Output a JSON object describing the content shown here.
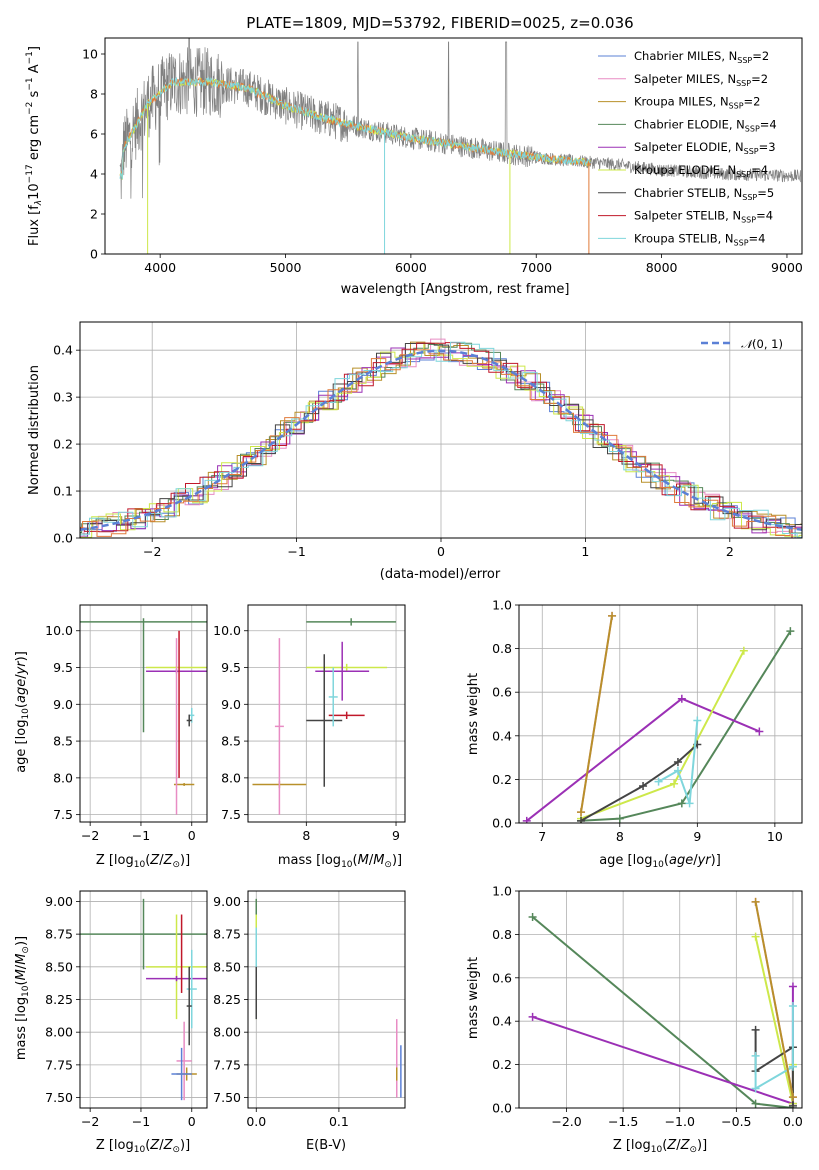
{
  "title": "PLATE=1809, MJD=53792, FIBERID=0025, z=0.036",
  "colors": {
    "Chabrier MILES": "#5b80d6",
    "Salpeter MILES": "#e88cc4",
    "Kroupa MILES": "#b8902a",
    "Chabrier ELODIE": "#55875a",
    "Salpeter ELODIE": "#9b30b5",
    "Kroupa ELODIE": "#cde84a",
    "Chabrier STELIB": "#444444",
    "Salpeter STELIB": "#c0182a",
    "Kroupa STELIB": "#7fd6dc",
    "data": "#808080",
    "orange": "#e07a3a",
    "gauss": "#5b80d6"
  },
  "chart_data": [
    {
      "type": "line",
      "id": "spectrum",
      "xlabel": "wavelength [Angstrom, rest frame]",
      "ylabel_html": "Flux [f_λ 10^-17 erg cm^-2 s^-1 A^-1]",
      "ylabel": {
        "pre": "Flux [f",
        "sub": "λ",
        "mid": "10",
        "sup1": "−17",
        "mid2": " erg cm",
        "sup2": "−2",
        "mid3": " s",
        "sup3": "−1",
        "mid4": " A",
        "sup4": "−1",
        "post": "]"
      },
      "xlim": [
        3560,
        9120
      ],
      "ylim": [
        0,
        10.8
      ],
      "xticks": [
        4000,
        5000,
        6000,
        7000,
        8000,
        9000
      ],
      "yticks": [
        0,
        2,
        4,
        6,
        8,
        10
      ],
      "data_range": [
        3680,
        9110
      ],
      "model_range": [
        3680,
        7430
      ],
      "legend": [
        {
          "name": "Chabrier MILES",
          "nssp": "2"
        },
        {
          "name": "Salpeter MILES",
          "nssp": "2"
        },
        {
          "name": "Kroupa MILES",
          "nssp": "2"
        },
        {
          "name": "Chabrier ELODIE",
          "nssp": "4"
        },
        {
          "name": "Salpeter ELODIE",
          "nssp": "3"
        },
        {
          "name": "Kroupa ELODIE",
          "nssp": "4"
        },
        {
          "name": "Chabrier STELIB",
          "nssp": "5"
        },
        {
          "name": "Salpeter STELIB",
          "nssp": "4"
        },
        {
          "name": "Kroupa STELIB",
          "nssp": "4"
        }
      ],
      "continuum": [
        [
          3700,
          5.2
        ],
        [
          3900,
          7.5
        ],
        [
          4100,
          8.6
        ],
        [
          4400,
          8.6
        ],
        [
          4700,
          8.3
        ],
        [
          5000,
          7.4
        ],
        [
          5300,
          6.8
        ],
        [
          5700,
          6.2
        ],
        [
          6000,
          5.8
        ],
        [
          6400,
          5.4
        ],
        [
          6800,
          5.0
        ],
        [
          7200,
          4.7
        ],
        [
          7600,
          4.5
        ],
        [
          8000,
          4.2
        ],
        [
          8500,
          4.0
        ],
        [
          9100,
          3.9
        ]
      ]
    },
    {
      "type": "line",
      "id": "residuals",
      "xlabel": "(data-model)/error",
      "ylabel": "Normed distribution",
      "xlim": [
        -2.5,
        2.5
      ],
      "ylim": [
        0,
        0.46
      ],
      "xticks": [
        -2,
        -1,
        0,
        1,
        2
      ],
      "yticks": [
        0.0,
        0.1,
        0.2,
        0.3,
        0.4
      ],
      "ytick_labels": [
        "0.0",
        "0.1",
        "0.2",
        "0.3",
        "0.4"
      ],
      "legend": "N(0,1)",
      "gauss_sigma": 1.0
    },
    {
      "type": "scatter",
      "id": "age_vs_Z",
      "xlabel": "Z [log10(Z/Zsun)]",
      "ylabel": "age [log10(age/yr)]",
      "xlim": [
        -2.2,
        0.3
      ],
      "ylim": [
        7.4,
        10.35
      ],
      "xticks": [
        -2,
        -1,
        0
      ],
      "yticks": [
        7.5,
        8.0,
        8.5,
        9.0,
        9.5,
        10.0
      ],
      "points": [
        {
          "c": "Chabrier ELODIE",
          "x": -0.95,
          "y": 10.12,
          "xe": 1.25,
          "ye": 0.05,
          "yl": 1.5
        },
        {
          "c": "Kroupa ELODIE",
          "x": -0.3,
          "y": 9.5,
          "xe": 0.6,
          "ye": 0.02,
          "yl": 0.0
        },
        {
          "c": "Salpeter ELODIE",
          "x": -0.3,
          "y": 9.45,
          "xe": 0.6,
          "ye": 0.03
        },
        {
          "c": "Salpeter STELIB",
          "x": -0.25,
          "y": 9.0,
          "xe": 0.0,
          "ye": 1.0
        },
        {
          "c": "Kroupa STELIB",
          "x": 0.0,
          "y": 8.85,
          "xe": 0.05,
          "ye": 0.1
        },
        {
          "c": "Chabrier STELIB",
          "x": -0.05,
          "y": 8.78,
          "xe": 0.05,
          "ye": 0.08
        },
        {
          "c": "Kroupa MILES",
          "x": -0.15,
          "y": 7.91,
          "xe": 0.2,
          "ye": 0.02
        },
        {
          "c": "Salpeter MILES",
          "x": -0.3,
          "y": 8.7,
          "xe": 0.0,
          "ye": 1.2
        }
      ]
    },
    {
      "type": "scatter",
      "id": "age_vs_mass",
      "xlabel": "mass [log10(M/Msun)]",
      "ylabel": "",
      "xlim": [
        7.35,
        9.1
      ],
      "ylim": [
        7.4,
        10.35
      ],
      "xticks": [
        8,
        9
      ],
      "yticks": [
        7.5,
        8.0,
        8.5,
        9.0,
        9.5,
        10.0
      ],
      "points": [
        {
          "c": "Chabrier ELODIE",
          "x": 8.5,
          "y": 10.12,
          "xe": 0.5,
          "ye": 0.05
        },
        {
          "c": "Kroupa ELODIE",
          "x": 8.45,
          "y": 9.5,
          "xe": 0.45,
          "ye": 0.05
        },
        {
          "c": "Salpeter ELODIE",
          "x": 8.4,
          "y": 9.45,
          "xe": 0.3,
          "ye": 0.4
        },
        {
          "c": "Chabrier STELIB",
          "x": 8.2,
          "y": 8.78,
          "xe": 0.2,
          "ye": 0.9
        },
        {
          "c": "Salpeter STELIB",
          "x": 8.45,
          "y": 8.85,
          "xe": 0.2,
          "ye": 0.05
        },
        {
          "c": "Kroupa MILES",
          "x": 7.7,
          "y": 7.91,
          "xe": 0.3,
          "ye": 0.05
        },
        {
          "c": "Salpeter MILES",
          "x": 7.7,
          "y": 8.7,
          "xe": 0.05,
          "ye": 1.2
        },
        {
          "c": "Kroupa STELIB",
          "x": 8.3,
          "y": 9.1,
          "xe": 0.05,
          "ye": 0.4
        }
      ]
    },
    {
      "type": "line",
      "id": "mass_weight_vs_age",
      "xlabel": "age [log10(age/yr)]",
      "ylabel": "mass weight",
      "xlim": [
        6.7,
        10.35
      ],
      "ylim": [
        0,
        1.0
      ],
      "xticks": [
        7,
        8,
        9,
        10
      ],
      "yticks": [
        0.0,
        0.2,
        0.4,
        0.6,
        0.8,
        1.0
      ],
      "ytick_labels": [
        "0.0",
        "0.2",
        "0.4",
        "0.6",
        "0.8",
        "1.0"
      ],
      "series": [
        {
          "c": "Chabrier ELODIE",
          "pts": [
            [
              7.5,
              0.01
            ],
            [
              8.0,
              0.02
            ],
            [
              8.8,
              0.09
            ],
            [
              10.2,
              0.88
            ]
          ]
        },
        {
          "c": "Salpeter ELODIE",
          "pts": [
            [
              6.8,
              0.01
            ],
            [
              8.8,
              0.57
            ],
            [
              9.8,
              0.42
            ]
          ]
        },
        {
          "c": "Kroupa ELODIE",
          "pts": [
            [
              7.5,
              0.02
            ],
            [
              8.7,
              0.18
            ],
            [
              9.6,
              0.79
            ]
          ]
        },
        {
          "c": "Chabrier STELIB",
          "pts": [
            [
              7.5,
              0.01
            ],
            [
              8.3,
              0.17
            ],
            [
              8.75,
              0.28
            ],
            [
              9.0,
              0.36
            ]
          ]
        },
        {
          "c": "Kroupa STELIB",
          "pts": [
            [
              8.5,
              0.19
            ],
            [
              8.75,
              0.24
            ],
            [
              8.9,
              0.09
            ],
            [
              9.0,
              0.47
            ]
          ]
        },
        {
          "c": "Salpeter MILES",
          "pts": [
            [
              7.5,
              0.05
            ],
            [
              7.9,
              0.95
            ]
          ]
        },
        {
          "c": "Kroupa MILES",
          "pts": [
            [
              7.5,
              0.05
            ],
            [
              7.9,
              0.95
            ]
          ]
        }
      ]
    },
    {
      "type": "scatter",
      "id": "mass_vs_Z",
      "xlabel": "Z [log10(Z/Zsun)]",
      "ylabel": "mass [log10(M/Msun)]",
      "xlim": [
        -2.2,
        0.3
      ],
      "ylim": [
        7.42,
        9.08
      ],
      "xticks": [
        -2,
        -1,
        0
      ],
      "yticks": [
        7.5,
        7.75,
        8.0,
        8.25,
        8.5,
        8.75,
        9.0
      ],
      "ytick_labels": [
        "7.50",
        "7.75",
        "8.00",
        "8.25",
        "8.50",
        "8.75",
        "9.00"
      ],
      "points": [
        {
          "c": "Chabrier ELODIE",
          "x": -0.95,
          "y": 8.75,
          "xe": 1.25,
          "ye": 0.27
        },
        {
          "c": "Kroupa ELODIE",
          "x": -0.3,
          "y": 8.5,
          "xe": 0.6,
          "ye": 0.4
        },
        {
          "c": "Salpeter ELODIE",
          "x": -0.3,
          "y": 8.41,
          "xe": 0.6,
          "ye": 0.02
        },
        {
          "c": "Salpeter STELIB",
          "x": -0.2,
          "y": 8.6,
          "xe": 0.0,
          "ye": 0.3
        },
        {
          "c": "Kroupa STELIB",
          "x": 0.0,
          "y": 8.33,
          "xe": 0.1,
          "ye": 0.3
        },
        {
          "c": "Chabrier STELIB",
          "x": -0.05,
          "y": 8.2,
          "xe": 0.05,
          "ye": 0.3
        },
        {
          "c": "Salpeter MILES",
          "x": -0.15,
          "y": 7.78,
          "xe": 0.15,
          "ye": 0.3
        },
        {
          "c": "Kroupa MILES",
          "x": -0.1,
          "y": 7.68,
          "xe": 0.2,
          "ye": 0.05
        },
        {
          "c": "Chabrier MILES",
          "x": -0.2,
          "y": 7.68,
          "xe": 0.2,
          "ye": 0.2
        }
      ]
    },
    {
      "type": "scatter",
      "id": "mass_vs_ebv",
      "xlabel": "E(B-V)",
      "ylabel": "",
      "xlim": [
        -0.01,
        0.18
      ],
      "ylim": [
        7.42,
        9.08
      ],
      "xticks": [
        0.0,
        0.1
      ],
      "xtick_labels": [
        "0.0",
        "0.1"
      ],
      "yticks": [
        7.5,
        7.75,
        8.0,
        8.25,
        8.5,
        8.75,
        9.0
      ],
      "ytick_labels": [
        "7.50",
        "7.75",
        "8.00",
        "8.25",
        "8.50",
        "8.75",
        "9.00"
      ],
      "points": [
        {
          "c": "Chabrier ELODIE",
          "x": 0.0,
          "y": 8.75,
          "xe": 0.0,
          "ye": 0.27
        },
        {
          "c": "Kroupa ELODIE",
          "x": 0.0,
          "y": 8.5,
          "xe": 0.0,
          "ye": 0.4
        },
        {
          "c": "Salpeter STELIB",
          "x": 0.0,
          "y": 8.65,
          "xe": 0.0,
          "ye": 0.08
        },
        {
          "c": "Kroupa STELIB",
          "x": 0.0,
          "y": 8.5,
          "xe": 0.0,
          "ye": 0.3
        },
        {
          "c": "Chabrier STELIB",
          "x": 0.0,
          "y": 8.3,
          "xe": 0.0,
          "ye": 0.2
        },
        {
          "c": "Salpeter MILES",
          "x": 0.17,
          "y": 7.8,
          "xe": 0.0,
          "ye": 0.3
        },
        {
          "c": "Kroupa MILES",
          "x": 0.17,
          "y": 7.68,
          "xe": 0.0,
          "ye": 0.05
        },
        {
          "c": "Chabrier MILES",
          "x": 0.175,
          "y": 7.7,
          "xe": 0.0,
          "ye": 0.2
        }
      ]
    },
    {
      "type": "line",
      "id": "mass_weight_vs_Z",
      "xlabel": "Z [log10(Z/Zsun)]",
      "ylabel": "mass weight",
      "xlim": [
        -2.42,
        0.08
      ],
      "ylim": [
        0,
        1.0
      ],
      "xticks": [
        -2.0,
        -1.5,
        -1.0,
        -0.5,
        0.0
      ],
      "xtick_labels": [
        "−2.0",
        "−1.5",
        "−1.0",
        "−0.5",
        "0.0"
      ],
      "yticks": [
        0.0,
        0.2,
        0.4,
        0.6,
        0.8,
        1.0
      ],
      "ytick_labels": [
        "0.0",
        "0.2",
        "0.4",
        "0.6",
        "0.8",
        "1.0"
      ],
      "series": [
        {
          "c": "Chabrier ELODIE",
          "pts": [
            [
              -2.3,
              0.88
            ],
            [
              -0.33,
              0.02
            ],
            [
              0.0,
              0.0
            ]
          ]
        },
        {
          "c": "Salpeter ELODIE",
          "pts": [
            [
              -2.3,
              0.42
            ],
            [
              0.0,
              0.02
            ],
            [
              0.0,
              0.56
            ]
          ]
        },
        {
          "c": "Kroupa ELODIE",
          "pts": [
            [
              -0.33,
              0.79
            ],
            [
              0.0,
              0.02
            ],
            [
              0.0,
              0.2
            ]
          ]
        },
        {
          "c": "Chabrier STELIB",
          "pts": [
            [
              -0.33,
              0.36
            ],
            [
              -0.33,
              0.17
            ],
            [
              0.0,
              0.28
            ],
            [
              0.0,
              0.01
            ]
          ]
        },
        {
          "c": "Kroupa STELIB",
          "pts": [
            [
              -0.33,
              0.24
            ],
            [
              -0.33,
              0.09
            ],
            [
              0.0,
              0.19
            ],
            [
              0.0,
              0.47
            ]
          ]
        },
        {
          "c": "Salpeter MILES",
          "pts": [
            [
              -0.33,
              0.95
            ],
            [
              0.0,
              0.05
            ]
          ]
        },
        {
          "c": "Kroupa MILES",
          "pts": [
            [
              -0.33,
              0.95
            ],
            [
              0.0,
              0.05
            ]
          ]
        }
      ]
    }
  ]
}
